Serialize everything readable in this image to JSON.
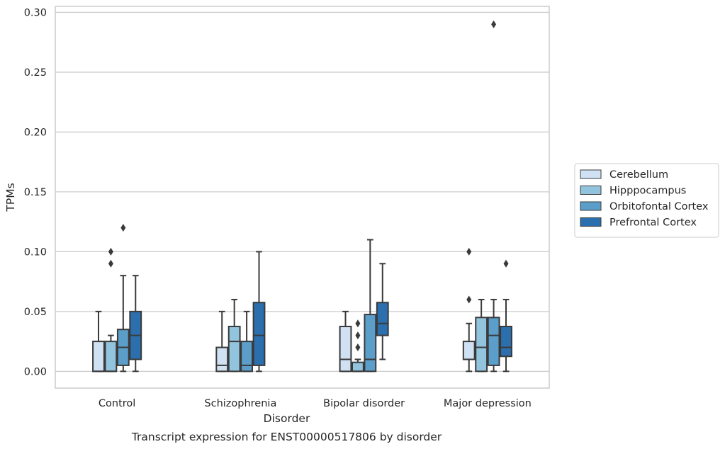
{
  "chart_data": {
    "type": "box",
    "caption": "Transcript expression for ENST00000517806 by disorder",
    "xlabel": "Disorder",
    "ylabel": "TPMs",
    "ylim": [
      -0.014,
      0.305
    ],
    "yticks": [
      0.0,
      0.05,
      0.1,
      0.15,
      0.2,
      0.25,
      0.3
    ],
    "ytick_labels": [
      "0.00",
      "0.05",
      "0.10",
      "0.15",
      "0.20",
      "0.25",
      "0.30"
    ],
    "grid": "horizontal",
    "legend_position": "right",
    "categories": [
      "Control",
      "Schizophrenia",
      "Bipolar disorder",
      "Major depression"
    ],
    "series": [
      {
        "name": "Cerebellum",
        "color": "#cfe1f2",
        "boxes": [
          {
            "whisker_low": 0.0,
            "q1": 0.0,
            "median": 0.0,
            "q3": 0.025,
            "whisker_high": 0.05,
            "outliers": []
          },
          {
            "whisker_low": 0.0,
            "q1": 0.0,
            "median": 0.005,
            "q3": 0.02,
            "whisker_high": 0.05,
            "outliers": []
          },
          {
            "whisker_low": 0.0,
            "q1": 0.0,
            "median": 0.01,
            "q3": 0.0375,
            "whisker_high": 0.05,
            "outliers": []
          },
          {
            "whisker_low": 0.0,
            "q1": 0.01,
            "median": 0.01,
            "q3": 0.025,
            "whisker_high": 0.04,
            "outliers": [
              0.06,
              0.1
            ]
          }
        ]
      },
      {
        "name": "Hipppocampus",
        "color": "#93c4de",
        "boxes": [
          {
            "whisker_low": 0.0,
            "q1": 0.0,
            "median": 0.0,
            "q3": 0.025,
            "whisker_high": 0.03,
            "outliers": [
              0.09,
              0.1
            ]
          },
          {
            "whisker_low": 0.0,
            "q1": 0.0,
            "median": 0.025,
            "q3": 0.0375,
            "whisker_high": 0.06,
            "outliers": []
          },
          {
            "whisker_low": 0.0,
            "q1": 0.0,
            "median": 0.0,
            "q3": 0.0075,
            "whisker_high": 0.01,
            "outliers": [
              0.02,
              0.03,
              0.04
            ]
          },
          {
            "whisker_low": 0.0,
            "q1": 0.0,
            "median": 0.02,
            "q3": 0.045,
            "whisker_high": 0.06,
            "outliers": []
          }
        ]
      },
      {
        "name": "Orbitofontal Cortex",
        "color": "#5a9ec9",
        "boxes": [
          {
            "whisker_low": 0.0,
            "q1": 0.005,
            "median": 0.02,
            "q3": 0.035,
            "whisker_high": 0.08,
            "outliers": [
              0.12
            ]
          },
          {
            "whisker_low": 0.0,
            "q1": 0.0,
            "median": 0.005,
            "q3": 0.025,
            "whisker_high": 0.05,
            "outliers": []
          },
          {
            "whisker_low": 0.0,
            "q1": 0.0,
            "median": 0.01,
            "q3": 0.0475,
            "whisker_high": 0.11,
            "outliers": []
          },
          {
            "whisker_low": 0.0,
            "q1": 0.005,
            "median": 0.03,
            "q3": 0.045,
            "whisker_high": 0.06,
            "outliers": [
              0.29
            ]
          }
        ]
      },
      {
        "name": "Prefrontal Cortex",
        "color": "#2b6fae",
        "boxes": [
          {
            "whisker_low": 0.0,
            "q1": 0.01,
            "median": 0.03,
            "q3": 0.05,
            "whisker_high": 0.08,
            "outliers": []
          },
          {
            "whisker_low": 0.0,
            "q1": 0.005,
            "median": 0.03,
            "q3": 0.0575,
            "whisker_high": 0.1,
            "outliers": []
          },
          {
            "whisker_low": 0.01,
            "q1": 0.03,
            "median": 0.04,
            "q3": 0.0575,
            "whisker_high": 0.09,
            "outliers": []
          },
          {
            "whisker_low": 0.0,
            "q1": 0.0125,
            "median": 0.02,
            "q3": 0.0375,
            "whisker_high": 0.06,
            "outliers": [
              0.09
            ]
          }
        ]
      }
    ]
  }
}
